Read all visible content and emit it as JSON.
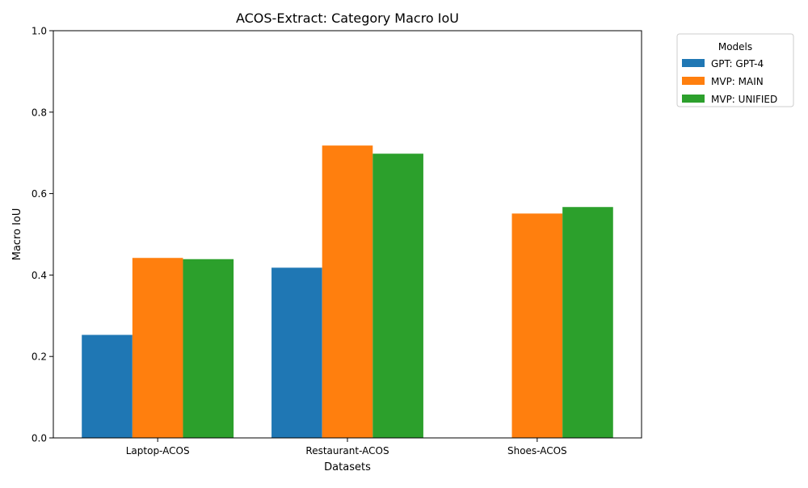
{
  "chart_data": {
    "type": "bar",
    "title": "ACOS-Extract: Category Macro IoU",
    "xlabel": "Datasets",
    "ylabel": "Macro IoU",
    "categories": [
      "Laptop-ACOS",
      "Restaurant-ACOS",
      "Shoes-ACOS"
    ],
    "ylim": [
      0,
      1.0
    ],
    "yticks": [
      "0.0",
      "0.2",
      "0.4",
      "0.6",
      "0.8",
      "1.0"
    ],
    "grid": false,
    "legend": {
      "title": "Models",
      "placement": "outside-top-right"
    },
    "series": [
      {
        "name": "GPT: GPT-4",
        "color": "#1f77b4",
        "values": [
          0.253,
          0.418,
          null
        ]
      },
      {
        "name": "MVP: MAIN",
        "color": "#ff7f0e",
        "values": [
          0.442,
          0.718,
          0.551
        ]
      },
      {
        "name": "MVP: UNIFIED",
        "color": "#2ca02c",
        "values": [
          0.439,
          0.698,
          0.567
        ]
      }
    ]
  }
}
